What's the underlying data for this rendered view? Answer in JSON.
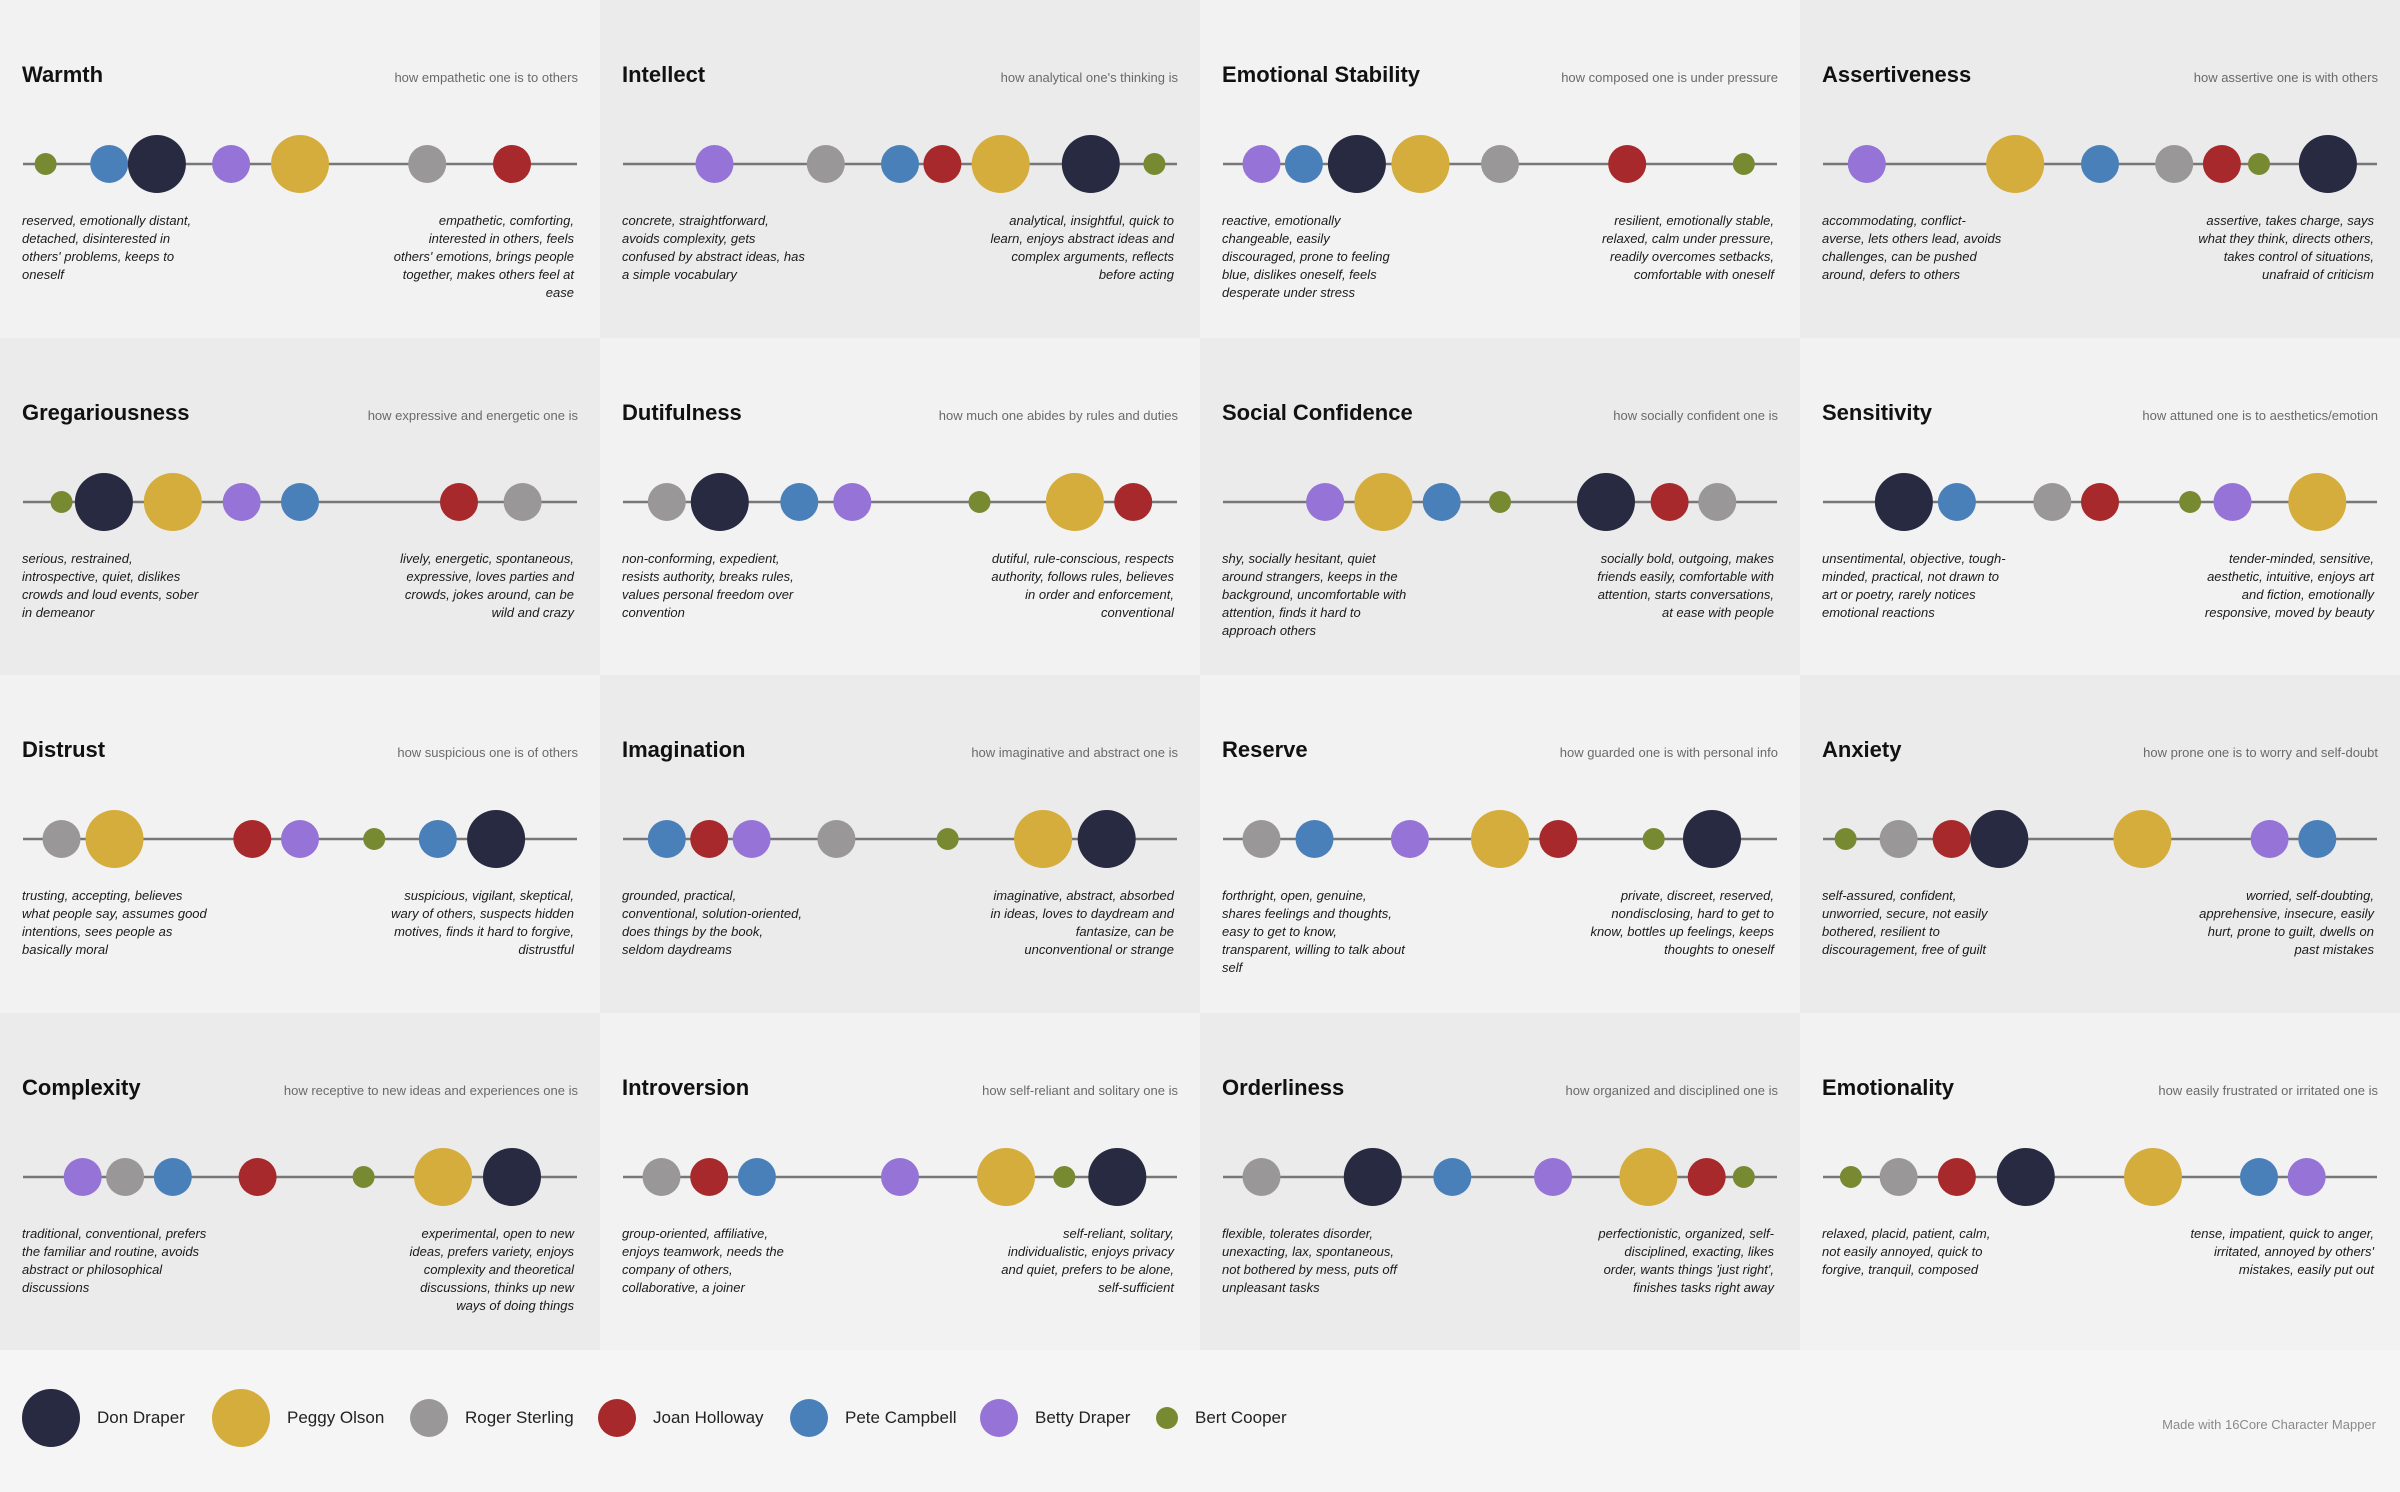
{
  "credit": "Made with 16Core Character Mapper",
  "legend": [
    {
      "name": "Don Draper",
      "color": "#272a40",
      "size": "large"
    },
    {
      "name": "Peggy Olson",
      "color": "#d5ad3c",
      "size": "large"
    },
    {
      "name": "Roger Sterling",
      "color": "#999797",
      "size": "medium"
    },
    {
      "name": "Joan Holloway",
      "color": "#a7292c",
      "size": "medium"
    },
    {
      "name": "Pete Campbell",
      "color": "#4a80b9",
      "size": "medium"
    },
    {
      "name": "Betty Draper",
      "color": "#9673d6",
      "size": "medium"
    },
    {
      "name": "Bert Cooper",
      "color": "#788a31",
      "size": "small"
    }
  ],
  "chart_data": {
    "type": "scatter",
    "scale": [
      0,
      100
    ],
    "panel_backgrounds": [
      "#f2f2f2",
      "#ebebeb"
    ],
    "panels": [
      {
        "title": "Warmth",
        "description": "how empathetic one is to others",
        "low": "reserved, emotionally distant, detached, disinterested in others' problems, keeps to oneself",
        "high": "empathetic, comforting, interested in others, feels others' emotions, brings people together, makes others feel at ease",
        "values": {
          "Don Draper": 23,
          "Peggy Olson": 50,
          "Roger Sterling": 74,
          "Joan Holloway": 90,
          "Pete Campbell": 14,
          "Betty Draper": 37,
          "Bert Cooper": 2
        }
      },
      {
        "title": "Intellect",
        "description": "how analytical one's thinking is",
        "low": "concrete, straightforward, avoids complexity, gets confused by abstract ideas, has a simple vocabulary",
        "high": "analytical, insightful, quick to learn, enjoys abstract ideas and complex arguments, reflects before acting",
        "values": {
          "Don Draper": 86,
          "Peggy Olson": 69,
          "Roger Sterling": 36,
          "Joan Holloway": 58,
          "Pete Campbell": 50,
          "Betty Draper": 15,
          "Bert Cooper": 98
        }
      },
      {
        "title": "Emotional Stability",
        "description": "how composed one is under pressure",
        "low": "reactive, emotionally changeable, easily discouraged, prone to feeling blue, dislikes oneself, feels desperate under stress",
        "high": "resilient, emotionally stable, relaxed, calm under pressure, readily overcomes setbacks, comfortable with oneself",
        "values": {
          "Don Draper": 23,
          "Peggy Olson": 35,
          "Roger Sterling": 50,
          "Joan Holloway": 74,
          "Pete Campbell": 13,
          "Betty Draper": 5,
          "Bert Cooper": 96
        }
      },
      {
        "title": "Assertiveness",
        "description": "how assertive one is with others",
        "low": "accommodating, conflict-averse, lets others lead, avoids challenges, can be pushed around, defers to others",
        "high": "assertive, takes charge, says what they think, directs others, takes control of situations, unafraid of criticism",
        "values": {
          "Don Draper": 93,
          "Peggy Olson": 34,
          "Roger Sterling": 64,
          "Joan Holloway": 73,
          "Pete Campbell": 50,
          "Betty Draper": 6,
          "Bert Cooper": 80
        }
      },
      {
        "title": "Gregariousness",
        "description": "how expressive and energetic one is",
        "low": "serious, restrained, introspective, quiet, dislikes crowds and loud events, sober in demeanor",
        "high": "lively, energetic, spontaneous, expressive, loves parties and crowds, jokes around, can be wild and crazy",
        "values": {
          "Don Draper": 13,
          "Peggy Olson": 26,
          "Roger Sterling": 92,
          "Joan Holloway": 80,
          "Pete Campbell": 50,
          "Betty Draper": 39,
          "Bert Cooper": 5
        }
      },
      {
        "title": "Dutifulness",
        "description": "how much one abides by rules and duties",
        "low": "non-conforming, expedient, resists authority, breaks rules, values personal freedom over convention",
        "high": "dutiful, rule-conscious, respects authority, follows rules, believes in order and enforcement, conventional",
        "values": {
          "Don Draper": 16,
          "Peggy Olson": 83,
          "Roger Sterling": 6,
          "Joan Holloway": 94,
          "Pete Campbell": 31,
          "Betty Draper": 41,
          "Bert Cooper": 65
        }
      },
      {
        "title": "Social Confidence",
        "description": "how socially confident one is",
        "low": "shy, socially hesitant, quiet around strangers, keeps in the background, uncomfortable with attention, finds it hard to approach others",
        "high": "socially bold, outgoing, makes friends easily, comfortable with attention, starts conversations, at ease with people",
        "values": {
          "Don Draper": 70,
          "Peggy Olson": 28,
          "Roger Sterling": 91,
          "Joan Holloway": 82,
          "Pete Campbell": 39,
          "Betty Draper": 17,
          "Bert Cooper": 50
        }
      },
      {
        "title": "Sensitivity",
        "description": "how attuned one is to aesthetics/emotion",
        "low": "unsentimental, objective, tough-minded, practical, not drawn to art or poetry, rarely notices emotional reactions",
        "high": "tender-minded, sensitive, aesthetic, intuitive, enjoys art and fiction, emotionally responsive, moved by beauty",
        "values": {
          "Don Draper": 13,
          "Peggy Olson": 91,
          "Roger Sterling": 41,
          "Joan Holloway": 50,
          "Pete Campbell": 23,
          "Betty Draper": 75,
          "Bert Cooper": 67
        }
      },
      {
        "title": "Distrust",
        "description": "how suspicious one is of others",
        "low": "trusting, accepting, believes what people say, assumes good intentions, sees people as basically moral",
        "high": "suspicious, vigilant, skeptical, wary of others, suspects hidden motives, finds it hard to forgive, distrustful",
        "values": {
          "Don Draper": 87,
          "Peggy Olson": 15,
          "Roger Sterling": 5,
          "Joan Holloway": 41,
          "Pete Campbell": 76,
          "Betty Draper": 50,
          "Bert Cooper": 64
        }
      },
      {
        "title": "Imagination",
        "description": "how imaginative and abstract one is",
        "low": "grounded, practical, conventional, solution-oriented, does things by the book, seldom daydreams",
        "high": "imaginative, abstract, absorbed in ideas, loves to daydream and fantasize, can be unconventional or strange",
        "values": {
          "Don Draper": 89,
          "Peggy Olson": 77,
          "Roger Sterling": 38,
          "Joan Holloway": 14,
          "Pete Campbell": 6,
          "Betty Draper": 22,
          "Bert Cooper": 59
        }
      },
      {
        "title": "Reserve",
        "description": "how guarded one is with personal info",
        "low": "forthright, open, genuine, shares feelings and thoughts, easy to get to know, transparent, willing to talk about self",
        "high": "private, discreet, reserved, nondisclosing, hard to get to know, bottles up feelings, keeps thoughts to oneself",
        "values": {
          "Don Draper": 90,
          "Peggy Olson": 50,
          "Roger Sterling": 5,
          "Joan Holloway": 61,
          "Pete Campbell": 15,
          "Betty Draper": 33,
          "Bert Cooper": 79
        }
      },
      {
        "title": "Anxiety",
        "description": "how prone one is to worry and self-doubt",
        "low": "self-assured, confident, unworried, secure, not easily bothered, resilient to discouragement, free of guilt",
        "high": "worried, self-doubting, apprehensive, insecure, easily hurt, prone to guilt, dwells on past mistakes",
        "values": {
          "Don Draper": 31,
          "Peggy Olson": 58,
          "Roger Sterling": 12,
          "Joan Holloway": 22,
          "Pete Campbell": 91,
          "Betty Draper": 82,
          "Bert Cooper": 2
        }
      },
      {
        "title": "Complexity",
        "description": "how receptive to new ideas and experiences one is",
        "low": "traditional, conventional, prefers the familiar and routine, avoids abstract or philosophical discussions",
        "high": "experimental, open to new ideas, prefers variety, enjoys complexity and theoretical discussions, thinks up new ways of doing things",
        "values": {
          "Don Draper": 90,
          "Peggy Olson": 77,
          "Roger Sterling": 17,
          "Joan Holloway": 42,
          "Pete Campbell": 26,
          "Betty Draper": 9,
          "Bert Cooper": 62
        }
      },
      {
        "title": "Introversion",
        "description": "how self-reliant and solitary one is",
        "low": "group-oriented, affiliative, enjoys teamwork, needs the company of others, collaborative, a joiner",
        "high": "self-reliant, solitary, individualistic, enjoys privacy and quiet, prefers to be alone, self-sufficient",
        "values": {
          "Don Draper": 91,
          "Peggy Olson": 70,
          "Roger Sterling": 5,
          "Joan Holloway": 14,
          "Pete Campbell": 23,
          "Betty Draper": 50,
          "Bert Cooper": 81
        }
      },
      {
        "title": "Orderliness",
        "description": "how organized and disciplined one is",
        "low": "flexible, tolerates disorder, unexacting, lax, spontaneous, not bothered by mess, puts off unpleasant tasks",
        "high": "perfectionistic, organized, self-disciplined, exacting, likes order, wants things 'just right', finishes tasks right away",
        "values": {
          "Don Draper": 26,
          "Peggy Olson": 78,
          "Roger Sterling": 5,
          "Joan Holloway": 89,
          "Pete Campbell": 41,
          "Betty Draper": 60,
          "Bert Cooper": 96
        }
      },
      {
        "title": "Emotionality",
        "description": "how easily frustrated or irritated one is",
        "low": "relaxed, placid, patient, calm, not easily annoyed, quick to forgive, tranquil, composed",
        "high": "tense, impatient, quick to anger, irritated, annoyed by others' mistakes, easily put out",
        "values": {
          "Don Draper": 36,
          "Peggy Olson": 60,
          "Roger Sterling": 12,
          "Joan Holloway": 23,
          "Pete Campbell": 80,
          "Betty Draper": 89,
          "Bert Cooper": 3
        }
      }
    ]
  }
}
